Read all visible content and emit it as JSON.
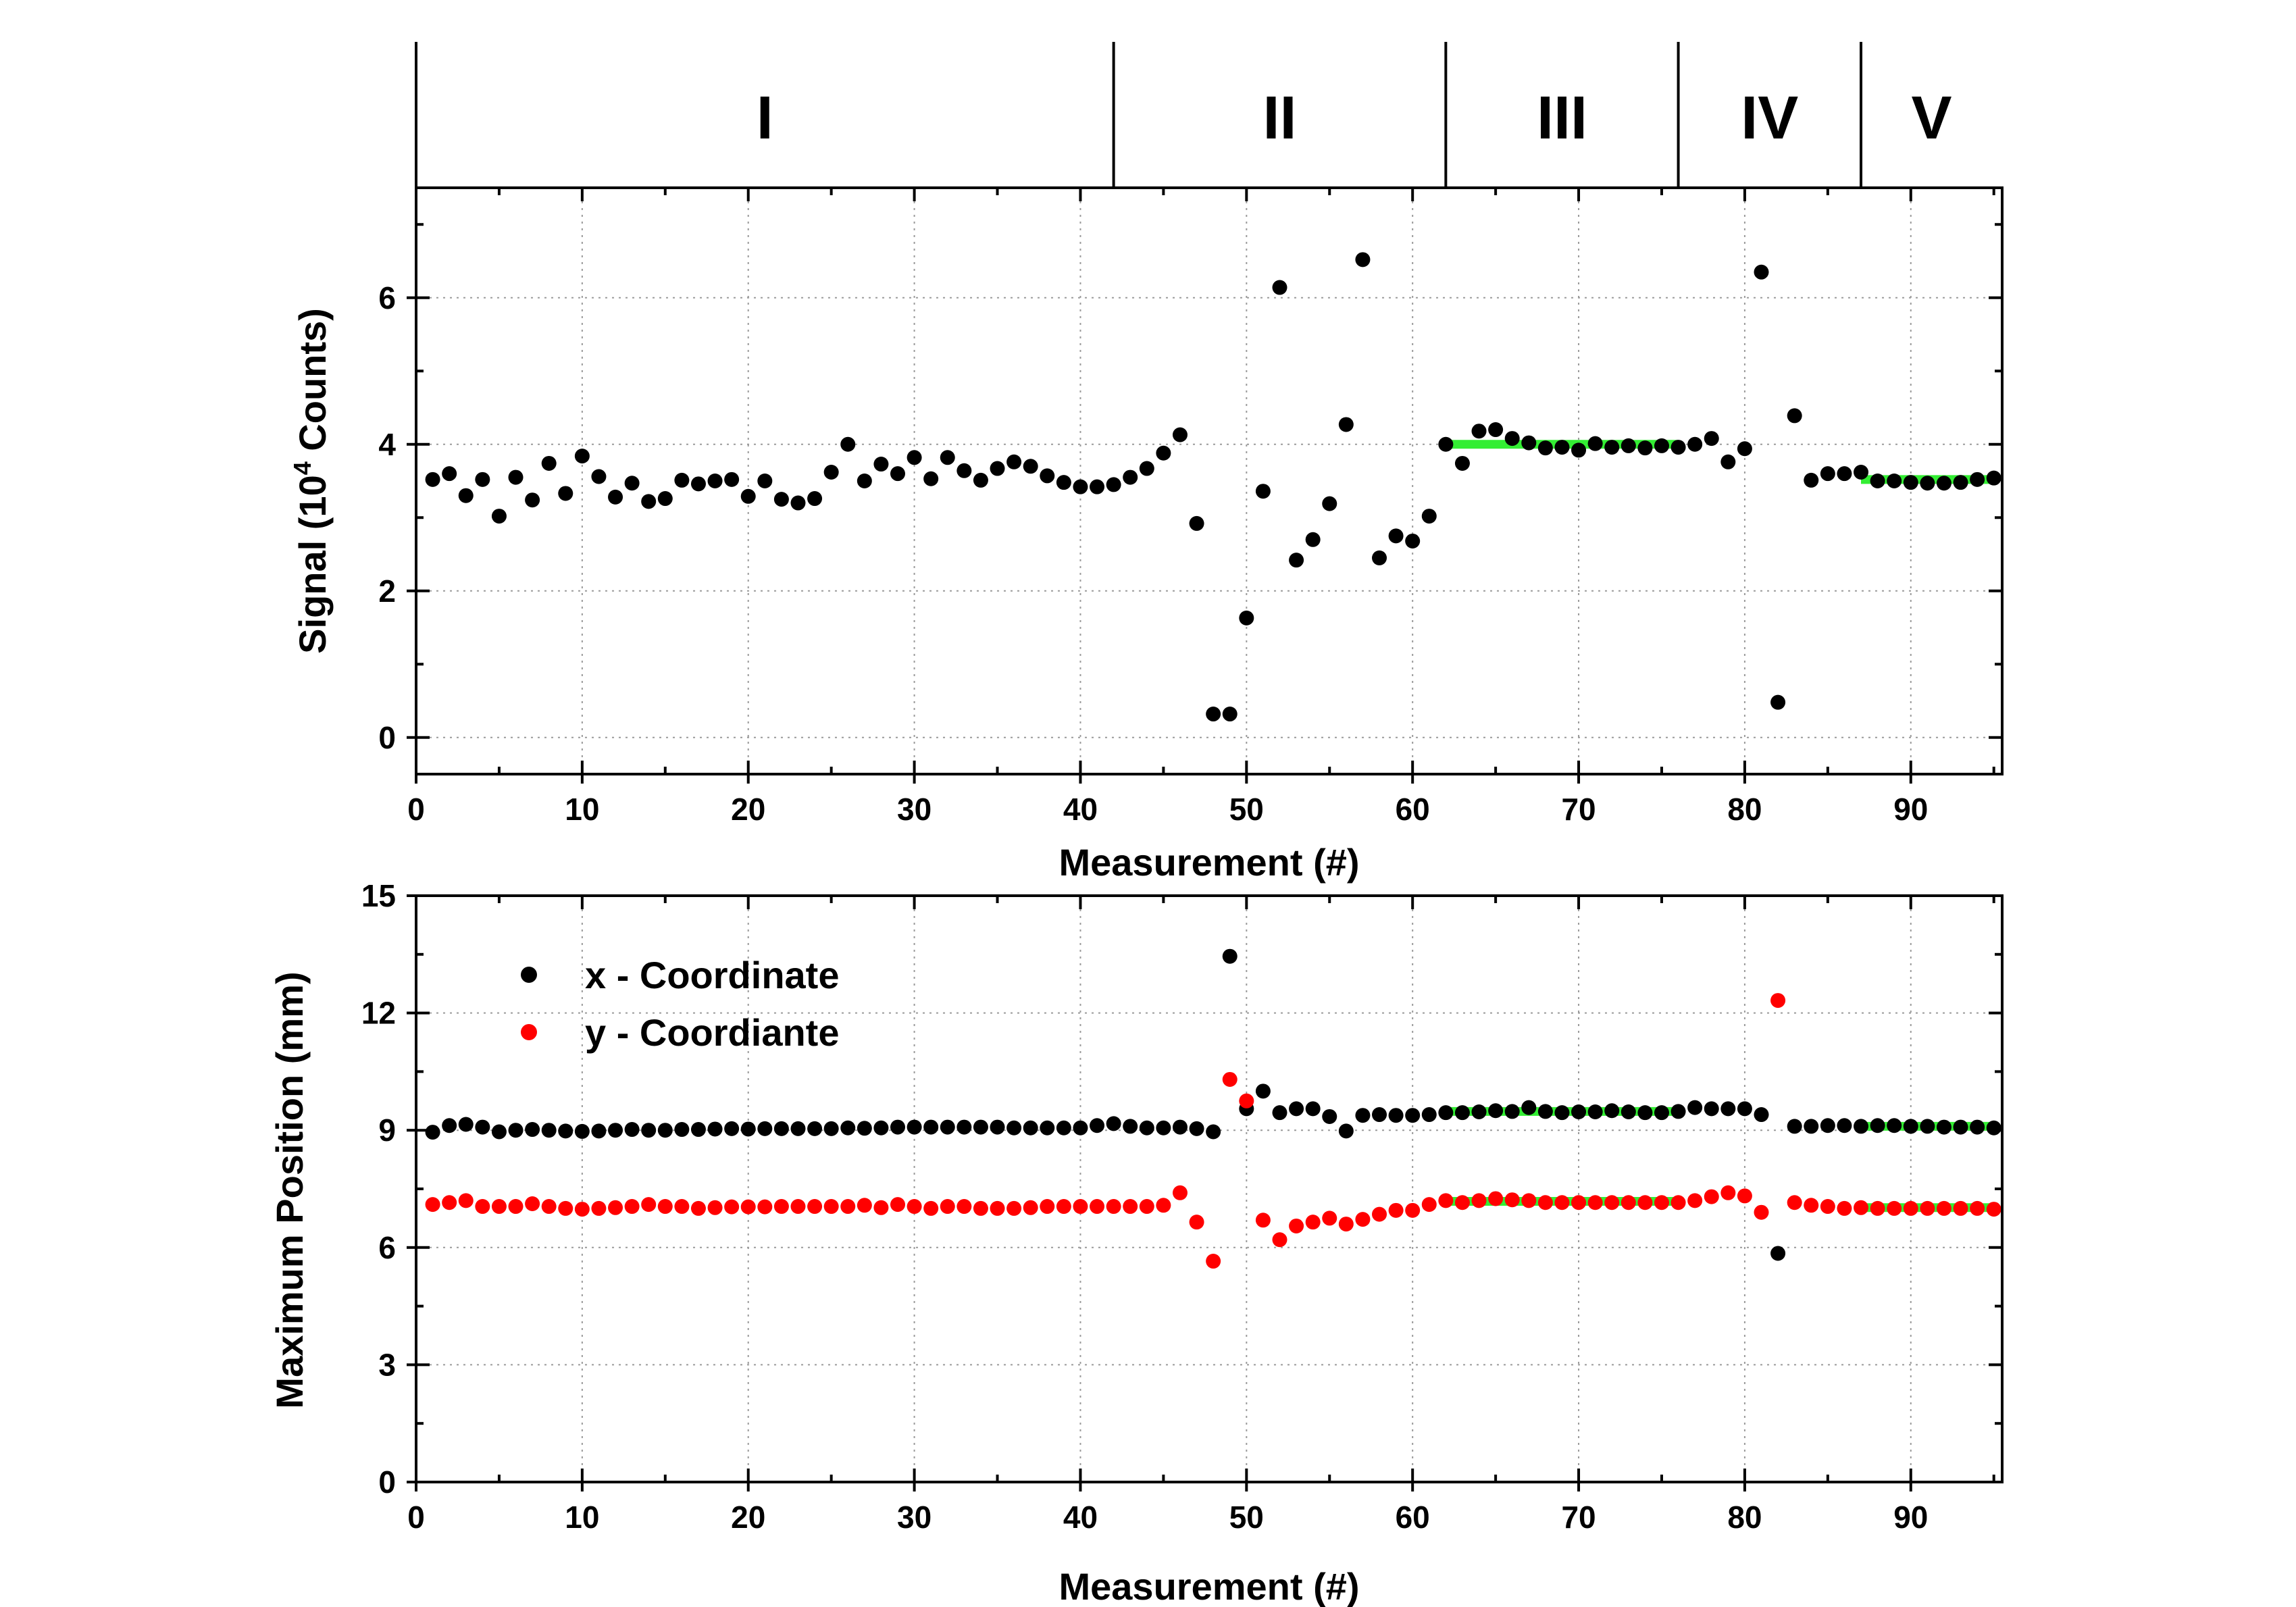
{
  "chart_data": {
    "type": "scatter",
    "x_measurements": [
      1,
      2,
      3,
      4,
      5,
      6,
      7,
      8,
      9,
      10,
      11,
      12,
      13,
      14,
      15,
      16,
      17,
      18,
      19,
      20,
      21,
      22,
      23,
      24,
      25,
      26,
      27,
      28,
      29,
      30,
      31,
      32,
      33,
      34,
      35,
      36,
      37,
      38,
      39,
      40,
      41,
      42,
      43,
      44,
      45,
      46,
      47,
      48,
      49,
      50,
      51,
      52,
      53,
      54,
      55,
      56,
      57,
      58,
      59,
      60,
      61,
      62,
      63,
      64,
      65,
      66,
      67,
      68,
      69,
      70,
      71,
      72,
      73,
      74,
      75,
      76,
      77,
      78,
      79,
      80,
      81,
      82,
      83,
      84,
      85,
      86,
      87,
      88,
      89,
      90,
      91,
      92,
      93,
      94,
      95
    ],
    "regions": [
      {
        "label": "I",
        "start": 0,
        "end": 42
      },
      {
        "label": "II",
        "start": 42,
        "end": 62
      },
      {
        "label": "III",
        "start": 62,
        "end": 76
      },
      {
        "label": "IV",
        "start": 76,
        "end": 87
      },
      {
        "label": "V",
        "start": 87,
        "end": 95.5
      }
    ],
    "panels": [
      {
        "id": "signal",
        "xlabel": "Measurement (#)",
        "ylabel_main": "Signal (10",
        "ylabel_sup": "4",
        "ylabel_tail": " Counts)",
        "xlim": [
          0,
          95.5
        ],
        "ylim": [
          -0.5,
          7.5
        ],
        "xticks": [
          0,
          10,
          20,
          30,
          40,
          50,
          60,
          70,
          80,
          90
        ],
        "yticks": [
          0,
          2,
          4,
          6
        ],
        "series": [
          {
            "name": "Signal",
            "color": "#000000",
            "values": [
              3.52,
              3.6,
              3.3,
              3.52,
              3.02,
              3.55,
              3.24,
              3.74,
              3.33,
              3.84,
              3.56,
              3.28,
              3.47,
              3.22,
              3.26,
              3.51,
              3.46,
              3.5,
              3.52,
              3.29,
              3.5,
              3.25,
              3.2,
              3.26,
              3.62,
              4.0,
              3.5,
              3.73,
              3.6,
              3.82,
              3.53,
              3.82,
              3.64,
              3.51,
              3.67,
              3.76,
              3.7,
              3.57,
              3.48,
              3.42,
              3.42,
              3.45,
              3.55,
              3.67,
              3.88,
              4.13,
              2.92,
              0.32,
              0.32,
              1.63,
              3.36,
              6.14,
              2.42,
              2.7,
              3.19,
              4.27,
              6.52,
              2.45,
              2.75,
              2.68,
              3.02,
              4.0,
              3.74,
              4.18,
              4.2,
              4.08,
              4.02,
              3.95,
              3.96,
              3.92,
              4.01,
              3.96,
              3.98,
              3.95,
              3.98,
              3.96,
              4.0,
              4.08,
              3.76,
              3.94,
              6.35,
              0.48,
              4.39,
              3.51,
              3.6,
              3.6,
              3.62,
              3.5,
              3.5,
              3.48,
              3.47,
              3.47,
              3.48,
              3.52,
              3.54
            ]
          }
        ],
        "fits": [
          {
            "x_start": 62,
            "x_end": 76,
            "value": 4.0,
            "color": "#33ee33"
          },
          {
            "x_start": 87,
            "x_end": 95,
            "value": 3.52,
            "color": "#33ee33"
          }
        ]
      },
      {
        "id": "position",
        "xlabel": "Measurement (#)",
        "ylabel": "Maximum Position (mm)",
        "xlim": [
          0,
          95.5
        ],
        "ylim": [
          0,
          15
        ],
        "xticks": [
          0,
          10,
          20,
          30,
          40,
          50,
          60,
          70,
          80,
          90
        ],
        "yticks": [
          0,
          3,
          6,
          9,
          12,
          15
        ],
        "series": [
          {
            "name": "x - Coordinate",
            "color": "#000000",
            "values": [
              8.95,
              9.12,
              9.15,
              9.08,
              8.96,
              9.0,
              9.02,
              9.0,
              8.98,
              8.97,
              8.98,
              9.0,
              9.02,
              9.0,
              9.0,
              9.02,
              9.02,
              9.03,
              9.04,
              9.03,
              9.04,
              9.04,
              9.04,
              9.04,
              9.04,
              9.06,
              9.05,
              9.06,
              9.08,
              9.08,
              9.08,
              9.08,
              9.08,
              9.08,
              9.08,
              9.06,
              9.06,
              9.06,
              9.06,
              9.06,
              9.12,
              9.17,
              9.1,
              9.06,
              9.06,
              9.08,
              9.04,
              8.96,
              13.45,
              9.55,
              10.0,
              9.45,
              9.55,
              9.55,
              9.35,
              8.98,
              9.38,
              9.4,
              9.38,
              9.38,
              9.4,
              9.45,
              9.45,
              9.47,
              9.5,
              9.48,
              9.58,
              9.48,
              9.45,
              9.47,
              9.47,
              9.5,
              9.47,
              9.45,
              9.45,
              9.48,
              9.58,
              9.55,
              9.55,
              9.55,
              9.4,
              5.85,
              9.1,
              9.1,
              9.12,
              9.12,
              9.1,
              9.12,
              9.12,
              9.1,
              9.1,
              9.08,
              9.08,
              9.08,
              9.06
            ]
          },
          {
            "name": "y - Coordiante",
            "color": "#ff0000",
            "values": [
              7.1,
              7.15,
              7.2,
              7.05,
              7.05,
              7.05,
              7.12,
              7.05,
              7.0,
              6.98,
              7.0,
              7.02,
              7.05,
              7.1,
              7.05,
              7.05,
              7.0,
              7.02,
              7.04,
              7.04,
              7.04,
              7.05,
              7.05,
              7.05,
              7.05,
              7.05,
              7.08,
              7.02,
              7.1,
              7.05,
              7.0,
              7.05,
              7.05,
              7.0,
              7.0,
              7.0,
              7.02,
              7.05,
              7.05,
              7.05,
              7.05,
              7.05,
              7.05,
              7.05,
              7.08,
              7.4,
              6.65,
              5.65,
              10.3,
              9.75,
              6.7,
              6.2,
              6.55,
              6.65,
              6.75,
              6.6,
              6.72,
              6.85,
              6.95,
              6.95,
              7.1,
              7.2,
              7.15,
              7.2,
              7.25,
              7.22,
              7.2,
              7.15,
              7.15,
              7.15,
              7.15,
              7.15,
              7.15,
              7.15,
              7.15,
              7.15,
              7.2,
              7.3,
              7.4,
              7.32,
              6.9,
              12.32,
              7.15,
              7.08,
              7.05,
              7.0,
              7.02,
              7.0,
              7.0,
              7.0,
              7.0,
              7.0,
              7.0,
              7.0,
              6.98
            ]
          }
        ],
        "fits": [
          {
            "x_start": 62,
            "x_end": 76,
            "value": 9.48,
            "color": "#33ee33"
          },
          {
            "x_start": 62,
            "x_end": 76,
            "value": 7.18,
            "color": "#33ee33"
          },
          {
            "x_start": 87,
            "x_end": 95,
            "value": 9.1,
            "color": "#33ee33"
          },
          {
            "x_start": 87,
            "x_end": 95,
            "value": 7.02,
            "color": "#33ee33"
          }
        ],
        "legend_position": "top-left"
      }
    ]
  }
}
